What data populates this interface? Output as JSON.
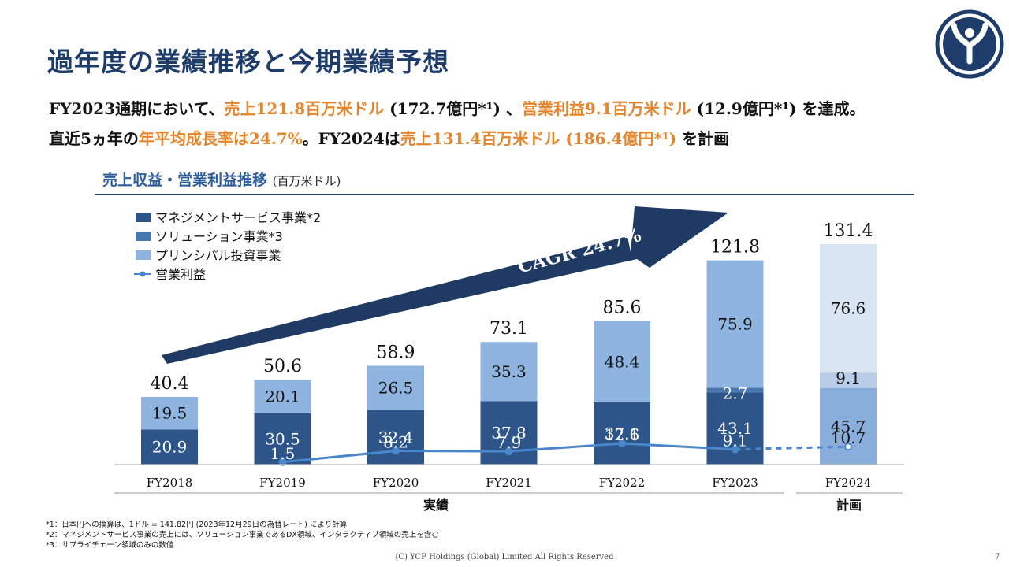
{
  "page": {
    "title": "過年度の業績推移と今期業績予想",
    "summary_line1": [
      {
        "text": "FY2023通期において、",
        "hl": false
      },
      {
        "text": "売上121.8百万米ドル",
        "hl": true
      },
      {
        "text": " (172.7億円*¹) 、",
        "hl": false
      },
      {
        "text": "営業利益9.1百万米ドル",
        "hl": true
      },
      {
        "text": " (12.9億円*¹) を達成。",
        "hl": false
      }
    ],
    "summary_line2": [
      {
        "text": "直近5ヵ年の",
        "hl": false
      },
      {
        "text": "年平均成長率は24.7%",
        "hl": true
      },
      {
        "text": "。FY2024は",
        "hl": false
      },
      {
        "text": "売上131.4百万米ドル (186.4億円*¹)",
        "hl": true
      },
      {
        "text": " を計画",
        "hl": false
      }
    ],
    "chart_title": "売上収益・営業利益推移",
    "chart_unit": "(百万米ドル)",
    "notes": [
      "*1：日本円への換算は、1ドル = 141.82円 (2023年12月29日の為替レート) により計算",
      "*2：マネジメントサービス事業の売上には、ソリューション事業であるDX領域、インタラクティブ領域の売上を含む",
      "*3：サプライチェーン領域のみの数値"
    ],
    "footer": "(C) YCP Holdings (Global) Limited All Rights Reserved",
    "page_number": "7",
    "colors": {
      "title": "#1f3d6b",
      "highlight": "#e4852b",
      "management": "#2d5589",
      "solution": "#4a77ad",
      "principal": "#8fb4e0",
      "plan_management": "#8aaedc",
      "plan_solution": "#b9cde9",
      "plan_principal": "#dae5f3",
      "operating_profit": "#4a86cc",
      "arrow": "#1f3b64"
    }
  },
  "chart_data": {
    "type": "bar",
    "stacked": true,
    "categories": [
      "FY2018",
      "FY2019",
      "FY2020",
      "FY2021",
      "FY2022",
      "FY2023",
      "FY2024"
    ],
    "series": [
      {
        "name": "マネジメントサービス事業*2",
        "values": [
          20.9,
          30.5,
          32.4,
          37.8,
          37.1,
          43.1,
          45.7
        ]
      },
      {
        "name": "ソリューション事業*3",
        "values": [
          0,
          0,
          0,
          0,
          0,
          2.7,
          9.1
        ]
      },
      {
        "name": "プリンシパル投資事業",
        "values": [
          19.5,
          20.1,
          26.5,
          35.3,
          48.4,
          75.9,
          76.6
        ]
      }
    ],
    "totals": [
      40.4,
      50.6,
      58.9,
      73.1,
      85.6,
      121.8,
      131.4
    ],
    "line": {
      "name": "営業利益",
      "values": [
        null,
        1.5,
        8.2,
        7.9,
        12.6,
        9.1,
        10.7
      ]
    },
    "groups": [
      {
        "label": "実績",
        "categories": [
          "FY2018",
          "FY2019",
          "FY2020",
          "FY2021",
          "FY2022",
          "FY2023"
        ]
      },
      {
        "label": "計画",
        "categories": [
          "FY2024"
        ]
      }
    ],
    "annotation": "CAGR 24.7%",
    "ylim": [
      0,
      131.4
    ],
    "legend_position": "top-left",
    "grid": false
  }
}
